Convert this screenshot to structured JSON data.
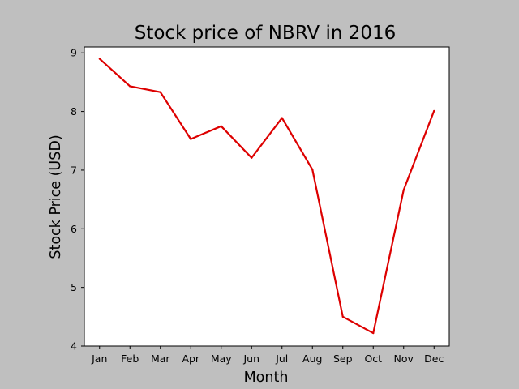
{
  "chart_data": {
    "type": "line",
    "title": "Stock price of NBRV in 2016",
    "xlabel": "Month",
    "ylabel": "Stock Price (USD)",
    "categories": [
      "Jan",
      "Feb",
      "Mar",
      "Apr",
      "May",
      "Jun",
      "Jul",
      "Aug",
      "Sep",
      "Oct",
      "Nov",
      "Dec"
    ],
    "series": [
      {
        "values": [
          8.9,
          8.43,
          8.33,
          7.53,
          7.75,
          7.21,
          7.89,
          7.01,
          4.5,
          4.22,
          6.66,
          8.01
        ]
      }
    ],
    "ylim": [
      4,
      9.1
    ],
    "yticks": [
      4,
      5,
      6,
      7,
      8,
      9
    ],
    "grid": false,
    "legend": "none",
    "colors": {
      "line": "#dd0000",
      "background": "#bfbfbf",
      "plot_background": "#ffffff"
    }
  }
}
